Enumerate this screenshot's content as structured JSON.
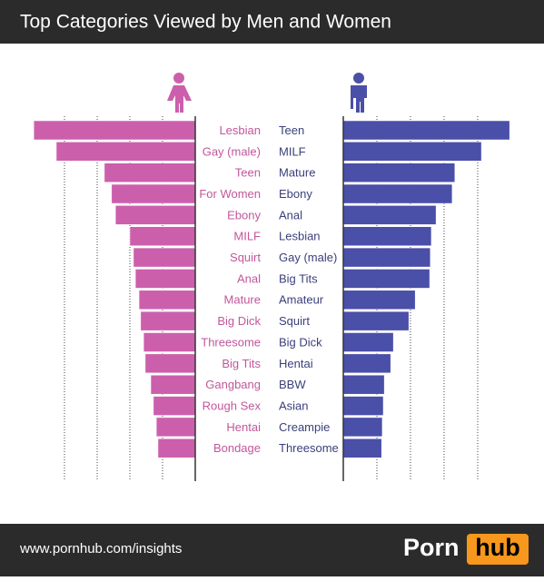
{
  "header": {
    "title": "Top Categories Viewed by Men and Women"
  },
  "chart_data": [
    {
      "type": "bar",
      "orientation": "horizontal",
      "direction": "left",
      "color": "#cc5fac",
      "label_color": "#c2579b",
      "categories": [
        "Lesbian",
        "Gay (male)",
        "Teen",
        "For Women",
        "Ebony",
        "MILF",
        "Squirt",
        "Anal",
        "Mature",
        "Big Dick",
        "Threesome",
        "Big Tits",
        "Gangbang",
        "Rough Sex",
        "Hentai",
        "Bondage"
      ],
      "values": [
        4.94,
        4.25,
        2.78,
        2.56,
        2.44,
        2.0,
        1.89,
        1.83,
        1.72,
        1.67,
        1.58,
        1.53,
        1.36,
        1.28,
        1.19,
        1.14
      ],
      "xlim": [
        0,
        5
      ],
      "xticks": [
        1,
        2,
        3,
        4
      ],
      "grid": true
    },
    {
      "type": "bar",
      "orientation": "horizontal",
      "direction": "right",
      "color": "#4a4fa8",
      "label_color": "#3a3f7a",
      "categories": [
        "Teen",
        "MILF",
        "Mature",
        "Ebony",
        "Anal",
        "Lesbian",
        "Gay (male)",
        "Big Tits",
        "Amateur",
        "Squirt",
        "Big Dick",
        "Hentai",
        "BBW",
        "Asian",
        "Creampie",
        "Threesome"
      ],
      "values": [
        4.95,
        4.11,
        3.32,
        3.24,
        2.76,
        2.62,
        2.59,
        2.57,
        2.14,
        1.95,
        1.49,
        1.41,
        1.22,
        1.19,
        1.16,
        1.14
      ],
      "xlim": [
        0,
        5
      ],
      "xticks": [
        1,
        2,
        3,
        4
      ],
      "grid": true
    }
  ],
  "footer": {
    "url": "www.pornhub.com/insights",
    "logo_left": "Porn",
    "logo_right": "hub"
  }
}
